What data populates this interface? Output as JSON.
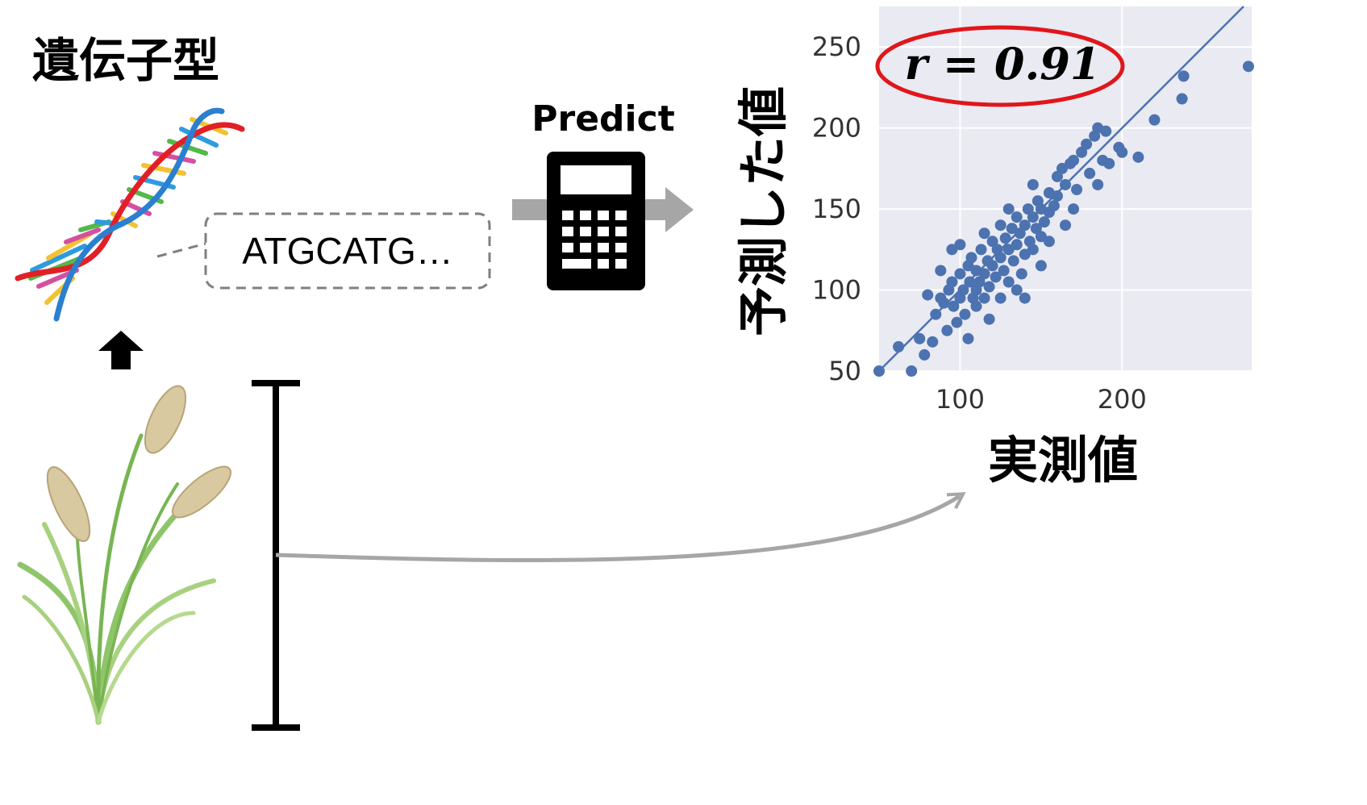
{
  "labels": {
    "genotype": "遺伝子型",
    "sequence": "ATGCATG…",
    "predict": "Predict",
    "correlation": "r = 0.91"
  },
  "icons": {
    "dna": "dna-double-helix-icon",
    "calculator": "calculator-icon",
    "plant": "rice-plant-icon",
    "up_arrow": "up-arrow-icon",
    "measure_bar": "height-measure-bar-icon"
  },
  "colors": {
    "plot_bg": "#e9eaf2",
    "points": "#4c72b0",
    "fit_line": "#4c72b0",
    "ellipse": "#e0161b",
    "arrow_gray": "#a6a6a6"
  },
  "chart_data": {
    "type": "scatter",
    "title": "",
    "xlabel": "実測値",
    "ylabel": "予測した値",
    "xlim": [
      50,
      280
    ],
    "ylim": [
      50,
      275
    ],
    "xticks": [
      100,
      200
    ],
    "yticks": [
      50,
      100,
      150,
      200,
      250
    ],
    "grid": true,
    "annotation": "r = 0.91",
    "fit_line": [
      [
        45,
        45
      ],
      [
        280,
        280
      ]
    ],
    "series": [
      {
        "points": [
          [
            50,
            50
          ],
          [
            70,
            50
          ],
          [
            62,
            65
          ],
          [
            75,
            70
          ],
          [
            78,
            60
          ],
          [
            83,
            68
          ],
          [
            85,
            85
          ],
          [
            88,
            95
          ],
          [
            90,
            92
          ],
          [
            93,
            100
          ],
          [
            95,
            105
          ],
          [
            96,
            90
          ],
          [
            98,
            80
          ],
          [
            100,
            110
          ],
          [
            100,
            95
          ],
          [
            102,
            100
          ],
          [
            103,
            85
          ],
          [
            105,
            115
          ],
          [
            106,
            105
          ],
          [
            107,
            120
          ],
          [
            108,
            95
          ],
          [
            110,
            112
          ],
          [
            110,
            100
          ],
          [
            112,
            105
          ],
          [
            113,
            125
          ],
          [
            115,
            110
          ],
          [
            115,
            95
          ],
          [
            117,
            118
          ],
          [
            118,
            102
          ],
          [
            120,
            130
          ],
          [
            120,
            115
          ],
          [
            122,
            108
          ],
          [
            123,
            125
          ],
          [
            125,
            120
          ],
          [
            125,
            140
          ],
          [
            127,
            112
          ],
          [
            128,
            132
          ],
          [
            130,
            125
          ],
          [
            130,
            105
          ],
          [
            132,
            138
          ],
          [
            133,
            118
          ],
          [
            135,
            145
          ],
          [
            135,
            128
          ],
          [
            137,
            135
          ],
          [
            138,
            110
          ],
          [
            140,
            140
          ],
          [
            140,
            122
          ],
          [
            142,
            150
          ],
          [
            143,
            130
          ],
          [
            145,
            145
          ],
          [
            145,
            125
          ],
          [
            147,
            138
          ],
          [
            148,
            155
          ],
          [
            150,
            150
          ],
          [
            150,
            133
          ],
          [
            152,
            142
          ],
          [
            155,
            160
          ],
          [
            155,
            148
          ],
          [
            158,
            152
          ],
          [
            160,
            158
          ],
          [
            160,
            170
          ],
          [
            163,
            175
          ],
          [
            165,
            165
          ],
          [
            168,
            178
          ],
          [
            170,
            180
          ],
          [
            172,
            162
          ],
          [
            175,
            185
          ],
          [
            178,
            190
          ],
          [
            180,
            172
          ],
          [
            183,
            195
          ],
          [
            185,
            200
          ],
          [
            188,
            180
          ],
          [
            190,
            198
          ],
          [
            192,
            178
          ],
          [
            198,
            188
          ],
          [
            200,
            185
          ],
          [
            210,
            182
          ],
          [
            220,
            205
          ],
          [
            237,
            218
          ],
          [
            238,
            232
          ],
          [
            278,
            238
          ],
          [
            100,
            128
          ],
          [
            110,
            90
          ],
          [
            115,
            135
          ],
          [
            125,
            95
          ],
          [
            95,
            125
          ],
          [
            88,
            112
          ],
          [
            135,
            100
          ],
          [
            150,
            115
          ],
          [
            165,
            140
          ],
          [
            80,
            97
          ],
          [
            92,
            75
          ],
          [
            105,
            70
          ],
          [
            118,
            82
          ],
          [
            130,
            150
          ],
          [
            145,
            165
          ],
          [
            140,
            95
          ],
          [
            155,
            130
          ],
          [
            170,
            150
          ],
          [
            185,
            165
          ]
        ]
      }
    ]
  }
}
